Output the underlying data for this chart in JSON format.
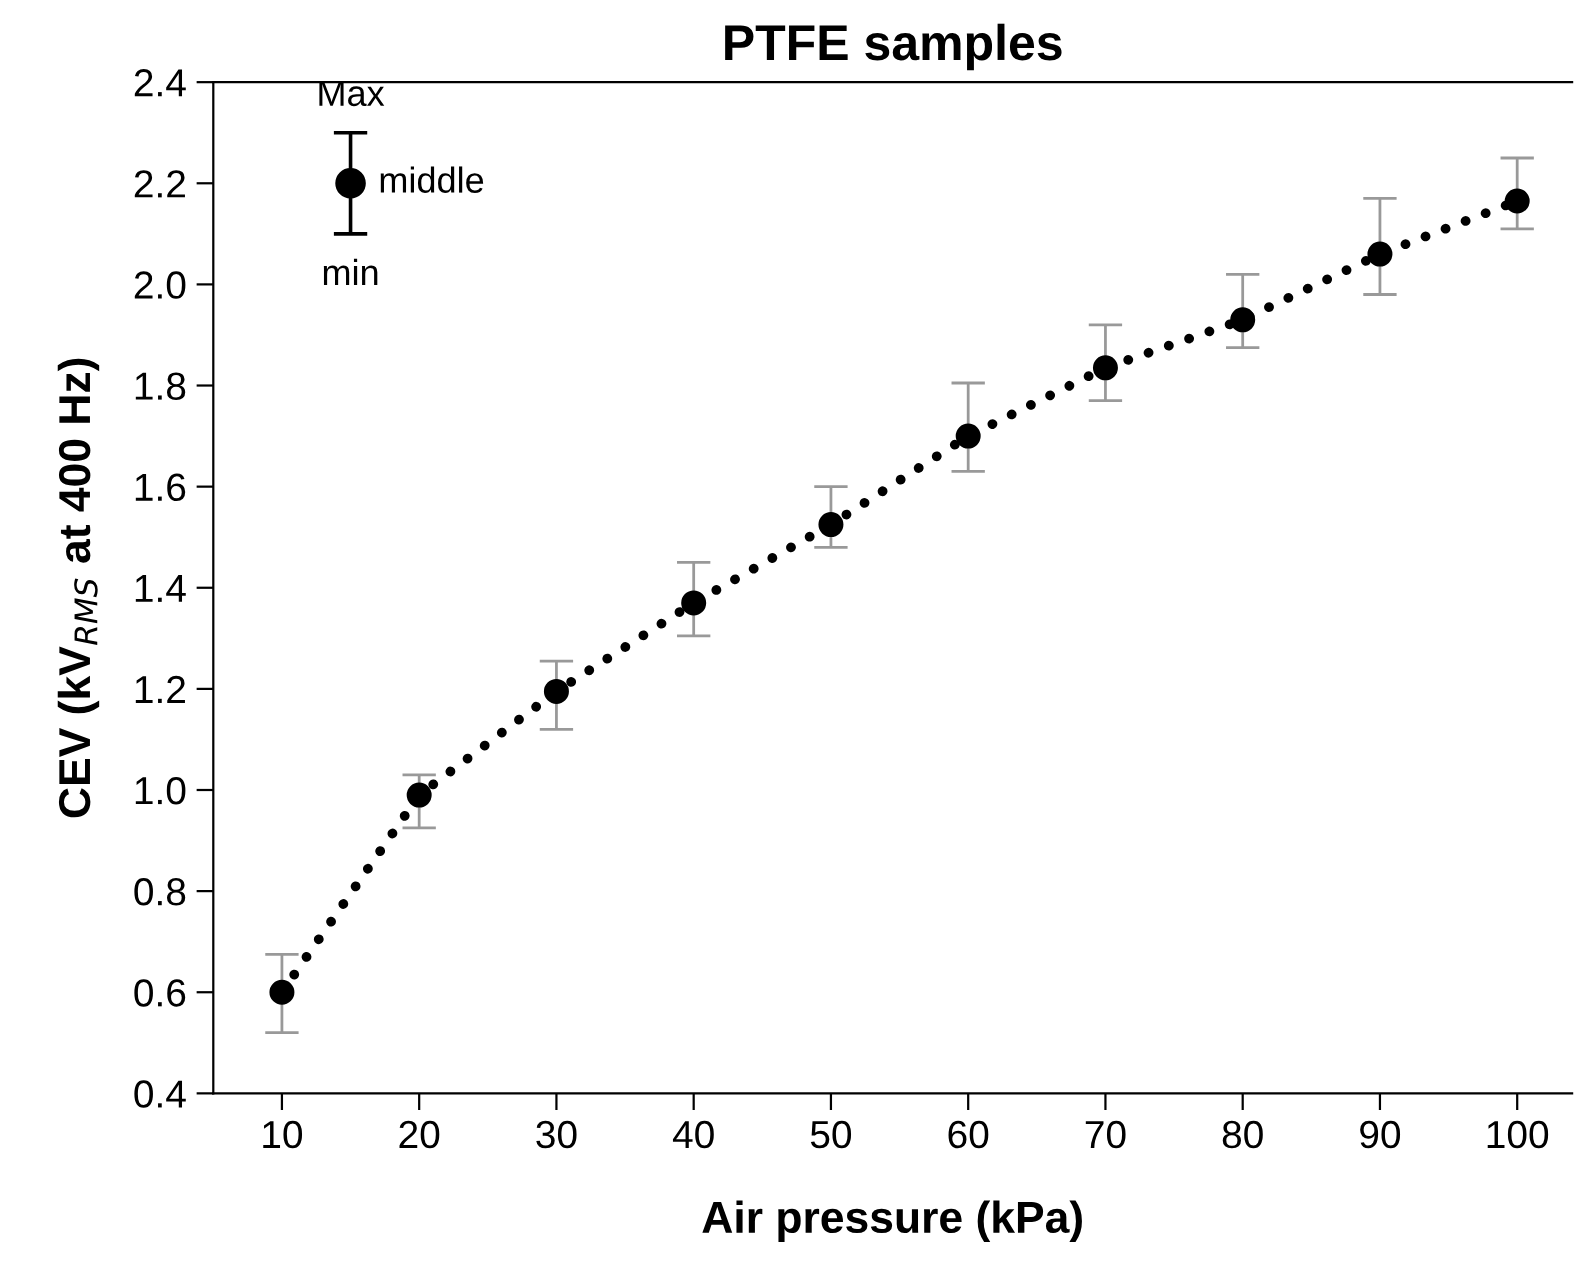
{
  "chart_data": {
    "type": "line",
    "title": "PTFE samples",
    "xlabel": "Air pressure (kPa)",
    "ylabel": "CEV (kV$_{RMS}$ at 400 Hz)",
    "xlim": [
      5,
      104
    ],
    "xticks": [
      10,
      20,
      30,
      40,
      50,
      60,
      70,
      80,
      90,
      100
    ],
    "ylim": [
      0.4,
      2.4
    ],
    "yticks": [
      0.4,
      0.6,
      0.8,
      {
        "value": 1,
        "label": "1.0"
      },
      1.2,
      1.4,
      1.6,
      1.8,
      {
        "value": 2,
        "label": "2.0"
      },
      2.2,
      2.4
    ],
    "grid": false,
    "marker": "circle",
    "line_style": "dotted",
    "series": [
      {
        "color": "#000000",
        "x": [
          10,
          20,
          30,
          40,
          50,
          60,
          70,
          80,
          90,
          100
        ],
        "values": [
          0.6,
          0.99,
          1.195,
          1.37,
          1.525,
          1.7,
          1.835,
          1.93,
          2.06,
          2.165
        ],
        "errors": [
          [
            0.52,
            0.675
          ],
          [
            0.925,
            1.03
          ],
          [
            1.12,
            1.255
          ],
          [
            1.305,
            1.45
          ],
          [
            1.48,
            1.6
          ],
          [
            1.63,
            1.805
          ],
          [
            1.77,
            1.92
          ],
          [
            1.875,
            2.02
          ],
          [
            1.98,
            2.17
          ],
          [
            2.11,
            2.25
          ]
        ]
      },
      {
        "type": "scatter",
        "color": "#000000",
        "x": [
          15
        ],
        "values": [
          2.2
        ],
        "errors": [
          [
            2.1,
            2.3
          ]
        ]
      }
    ],
    "annotations": [
      "Max",
      "middle",
      "min"
    ]
  }
}
